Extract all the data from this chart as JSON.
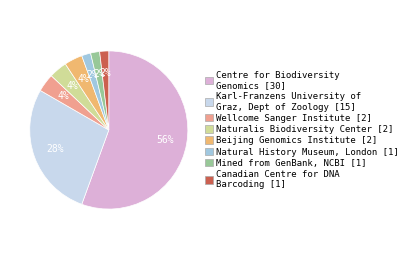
{
  "labels": [
    "Centre for Biodiversity\nGenomics [30]",
    "Karl-Franzens University of\nGraz, Dept of Zoology [15]",
    "Wellcome Sanger Institute [2]",
    "Naturalis Biodiversity Center [2]",
    "Beijing Genomics Institute [2]",
    "Natural History Museum, London [1]",
    "Mined from GenBank, NCBI [1]",
    "Canadian Centre for DNA\nBarcoding [1]"
  ],
  "values": [
    30,
    15,
    2,
    2,
    2,
    1,
    1,
    1
  ],
  "colors": [
    "#ddb0d8",
    "#c8d8ec",
    "#f0a090",
    "#d0dc98",
    "#f0b870",
    "#a0c8e0",
    "#98c898",
    "#cc6050"
  ],
  "text_fontsize": 6.5,
  "pct_fontsize": 7
}
